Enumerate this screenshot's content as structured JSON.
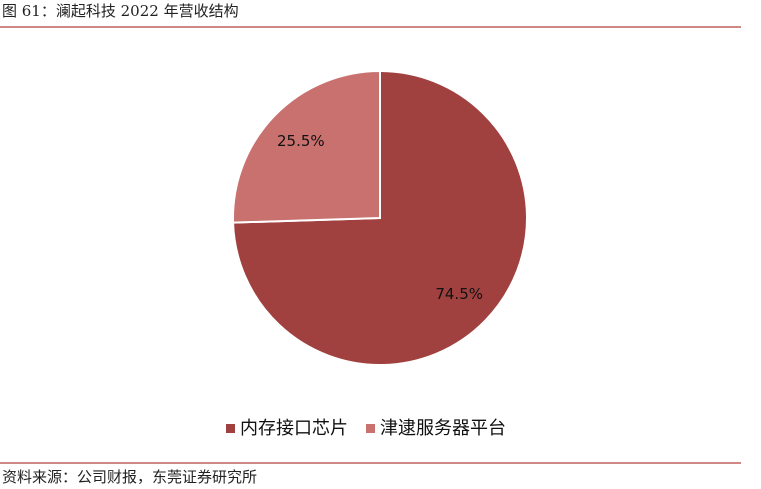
{
  "chart_data": {
    "type": "pie",
    "title": "图 61：澜起科技 2022 年营收结构",
    "categories": [
      "内存接口芯片",
      "津逮服务器平台"
    ],
    "values": [
      74.5,
      25.5
    ],
    "value_labels": [
      "74.5%",
      "25.5%"
    ],
    "colors": [
      "#a0413f",
      "#c8716f"
    ],
    "source": "资料来源：公司财报，东莞证券研究所"
  }
}
